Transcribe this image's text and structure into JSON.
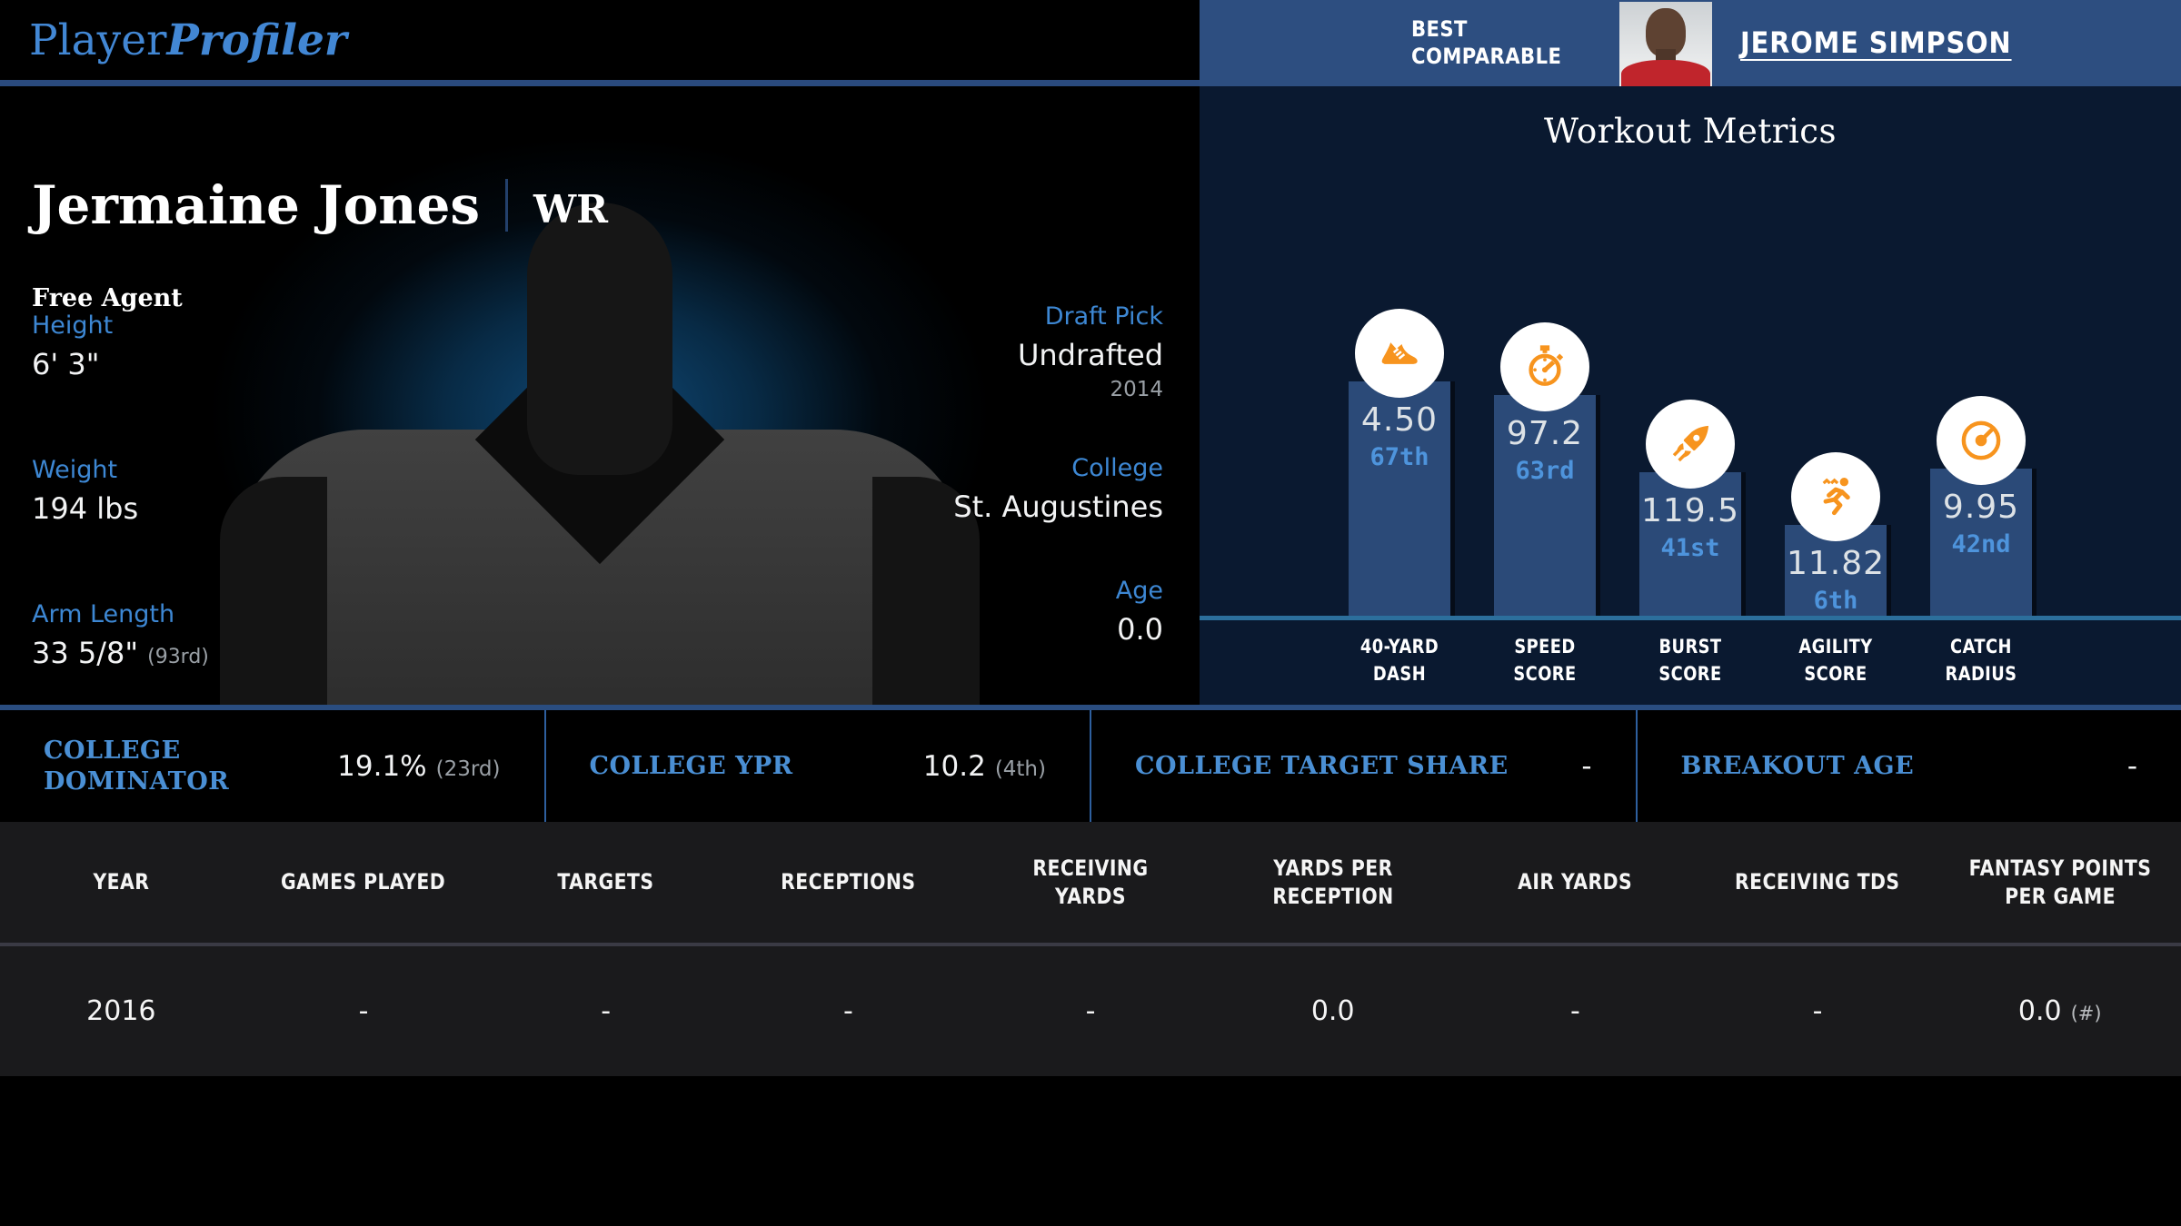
{
  "colors": {
    "brand_blue": "#4287d4",
    "label_blue": "#3d87d3",
    "banner_blue": "#2d4e80",
    "panel_navy": "#0a1930",
    "bar_blue": "#2b4a78",
    "percentile_blue": "#4e94dc",
    "icon_orange": "#f7941e",
    "baseline_blue": "#2c6f9c",
    "divider_blue": "#2a4d80",
    "table_bg": "#1a1a1c",
    "muted_gray": "#9aa0a6"
  },
  "logo": {
    "part1": "Player",
    "part2": "Profiler"
  },
  "player": {
    "name": "Jermaine Jones",
    "position": "WR",
    "status": "Free Agent"
  },
  "bio_left": [
    {
      "label": "Height",
      "value": "6' 3\""
    },
    {
      "label": "Weight",
      "value": "194 lbs"
    },
    {
      "label": "Arm Length",
      "value": "33 5/8\"",
      "percentile": "(93rd)"
    }
  ],
  "bio_right": [
    {
      "label": "Draft Pick",
      "value": "Undrafted",
      "sub": "2014"
    },
    {
      "label": "College",
      "value": "St. Augustines"
    },
    {
      "label": "Age",
      "value": "0.0"
    }
  ],
  "best_comparable": {
    "heading_line1": "BEST",
    "heading_line2": "COMPARABLE",
    "player_name": "JEROME SIMPSON"
  },
  "workout": {
    "title": "Workout Metrics",
    "chart_data": {
      "type": "bar",
      "categories": [
        "40-YARD DASH",
        "SPEED SCORE",
        "BURST SCORE",
        "AGILITY SCORE",
        "CATCH RADIUS"
      ],
      "values": [
        "4.50",
        "97.2",
        "119.5",
        "11.82",
        "9.95"
      ],
      "percentiles": [
        "67th",
        "63rd",
        "41st",
        "6th",
        "42nd"
      ],
      "percentile_ranks": [
        67,
        63,
        41,
        6,
        42
      ],
      "icons": [
        "shoe-icon",
        "stopwatch-icon",
        "rocket-icon",
        "runner-icon",
        "catch-radius-icon"
      ]
    }
  },
  "college_stats": [
    {
      "label": "COLLEGE DOMINATOR",
      "value": "19.1%",
      "percentile": "(23rd)"
    },
    {
      "label": "COLLEGE YPR",
      "value": "10.2",
      "percentile": "(4th)"
    },
    {
      "label": "COLLEGE TARGET SHARE",
      "value": "-",
      "percentile": ""
    },
    {
      "label": "BREAKOUT AGE",
      "value": "-",
      "percentile": ""
    }
  ],
  "stats_table": {
    "columns": [
      "YEAR",
      "GAMES PLAYED",
      "TARGETS",
      "RECEPTIONS",
      "RECEIVING YARDS",
      "YARDS PER RECEPTION",
      "AIR YARDS",
      "RECEIVING TDS",
      "FANTASY POINTS PER GAME"
    ],
    "rows": [
      {
        "year": "2016",
        "values": [
          "-",
          "-",
          "-",
          "-",
          "0.0",
          "-",
          "-"
        ],
        "fantasy_points": "0.0",
        "fantasy_note": "(#)"
      }
    ]
  }
}
